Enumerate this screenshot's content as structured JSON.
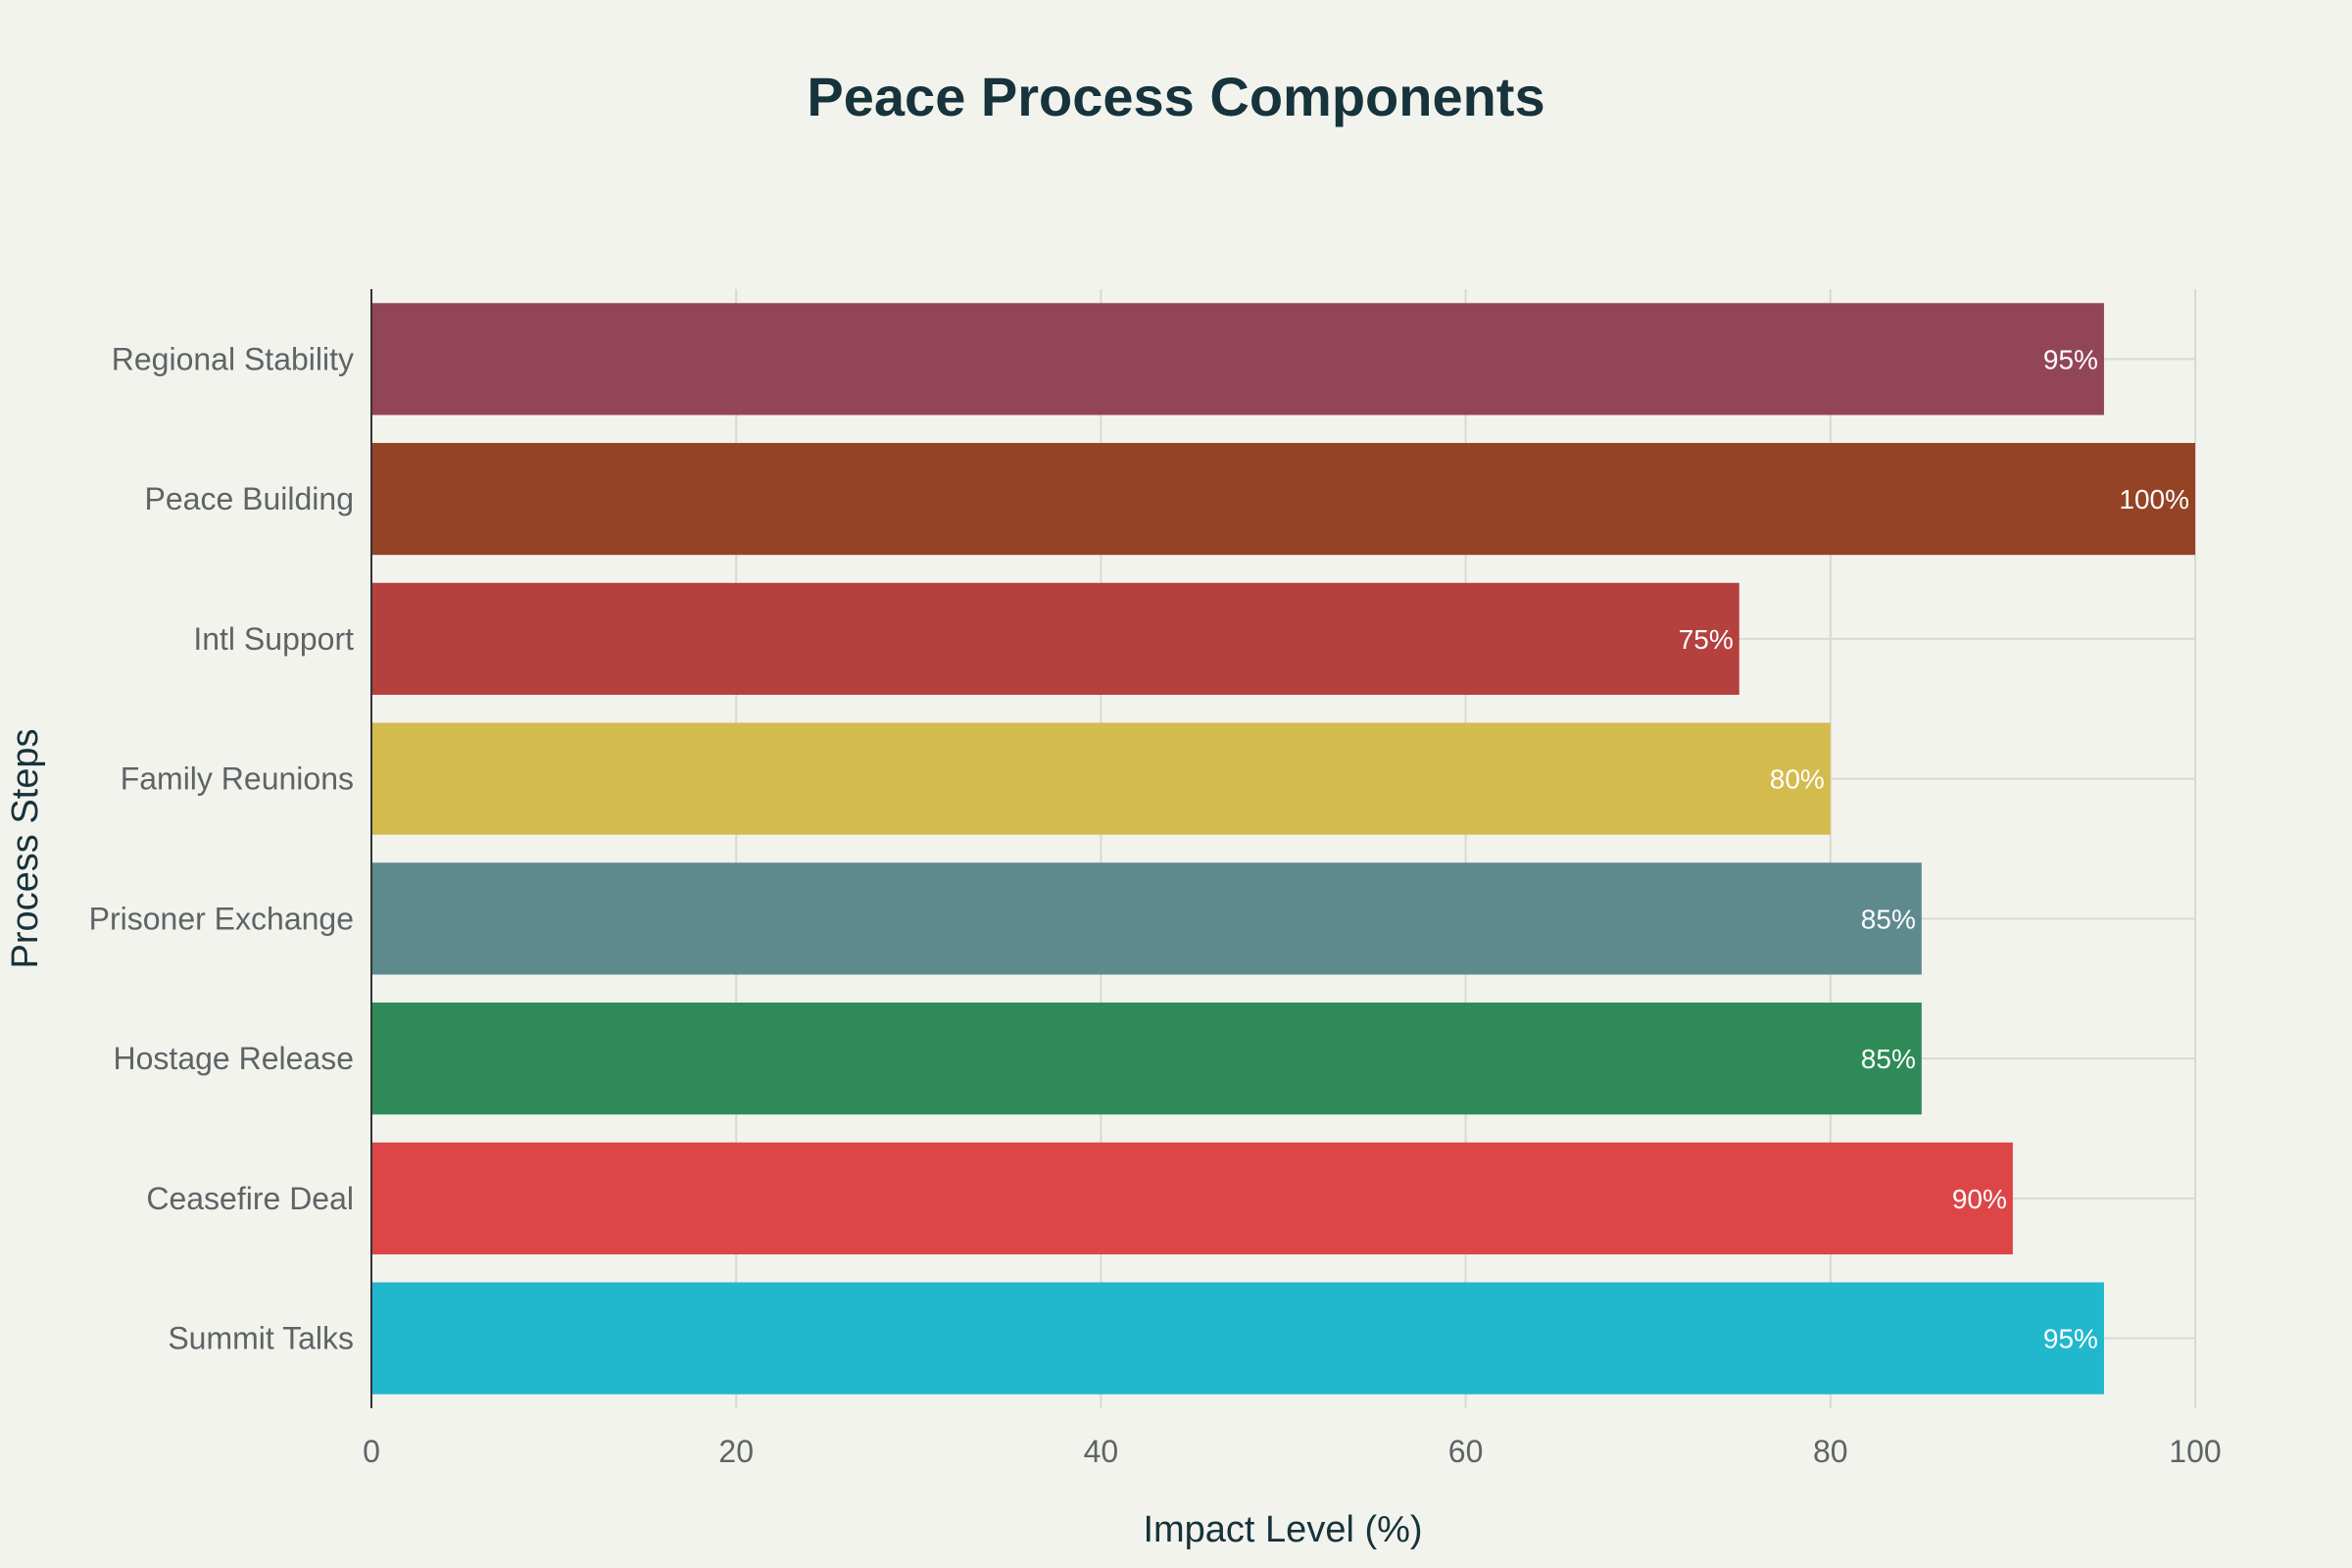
{
  "chart_data": {
    "type": "bar",
    "orientation": "horizontal",
    "title": "Peace Process Components",
    "xlabel": "Impact Level (%)",
    "ylabel": "Process Steps",
    "xlim": [
      0,
      100
    ],
    "xticks": [
      0,
      20,
      40,
      60,
      80,
      100
    ],
    "grid": true,
    "categories": [
      "Summit Talks",
      "Ceasefire Deal",
      "Hostage Release",
      "Prisoner Exchange",
      "Family Reunions",
      "Intl Support",
      "Peace Building",
      "Regional Stability"
    ],
    "values": [
      95,
      90,
      85,
      85,
      80,
      75,
      100,
      95
    ],
    "value_labels": [
      "95%",
      "90%",
      "85%",
      "85%",
      "80%",
      "75%",
      "100%",
      "95%"
    ],
    "colors": [
      "#21b8cd",
      "#dc4646",
      "#2e8b57",
      "#5e8a8e",
      "#d4bb4e",
      "#b5413e",
      "#944325",
      "#934558"
    ]
  }
}
